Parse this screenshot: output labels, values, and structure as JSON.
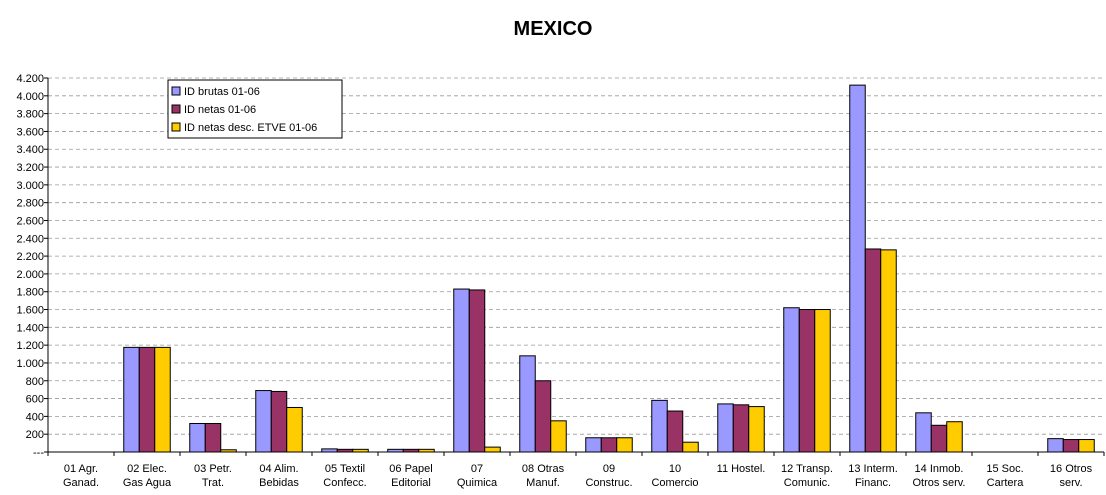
{
  "chart_data": {
    "type": "bar",
    "title": "MEXICO",
    "xlabel": "",
    "ylabel": "",
    "ylim": [
      0,
      4200
    ],
    "ytick_labels": [
      "---",
      "200",
      "400",
      "600",
      "800",
      "1.000",
      "1.200",
      "1.400",
      "1.600",
      "1.800",
      "2.000",
      "2.200",
      "2.400",
      "2.600",
      "2.800",
      "3.000",
      "3.200",
      "3.400",
      "3.600",
      "3.800",
      "4.000",
      "4.200"
    ],
    "categories": [
      [
        "01 Agr.",
        "Ganad."
      ],
      [
        "02 Elec.",
        "Gas Agua"
      ],
      [
        "03 Petr.",
        "Trat."
      ],
      [
        "04 Alim.",
        "Bebidas"
      ],
      [
        "05 Textil",
        "Confecc."
      ],
      [
        "06 Papel",
        "Editorial"
      ],
      [
        "07",
        "Quimica"
      ],
      [
        "08 Otras",
        "Manuf."
      ],
      [
        "09",
        "Construc."
      ],
      [
        "10",
        "Comercio"
      ],
      [
        "11 Hostel."
      ],
      [
        "12 Transp.",
        "Comunic."
      ],
      [
        "13 Interm.",
        "Financ."
      ],
      [
        "14 Inmob.",
        "Otros serv."
      ],
      [
        "15 Soc.",
        "Cartera"
      ],
      [
        "16 Otros",
        "serv."
      ]
    ],
    "series": [
      {
        "name": "ID brutas 01-06",
        "color": "#9999ff",
        "values": [
          0,
          1175,
          320,
          690,
          35,
          30,
          1830,
          1080,
          160,
          580,
          540,
          1620,
          4120,
          440,
          0,
          150
        ]
      },
      {
        "name": "ID netas 01-06",
        "color": "#993366",
        "values": [
          0,
          1175,
          320,
          680,
          30,
          30,
          1820,
          800,
          160,
          460,
          530,
          1600,
          2280,
          300,
          0,
          140
        ]
      },
      {
        "name": "ID netas desc. ETVE 01-06",
        "color": "#ffcc00",
        "values": [
          0,
          1175,
          25,
          500,
          30,
          30,
          55,
          350,
          160,
          110,
          510,
          1600,
          2270,
          340,
          0,
          140
        ]
      }
    ],
    "grid": true,
    "legend_position": "top-left"
  }
}
